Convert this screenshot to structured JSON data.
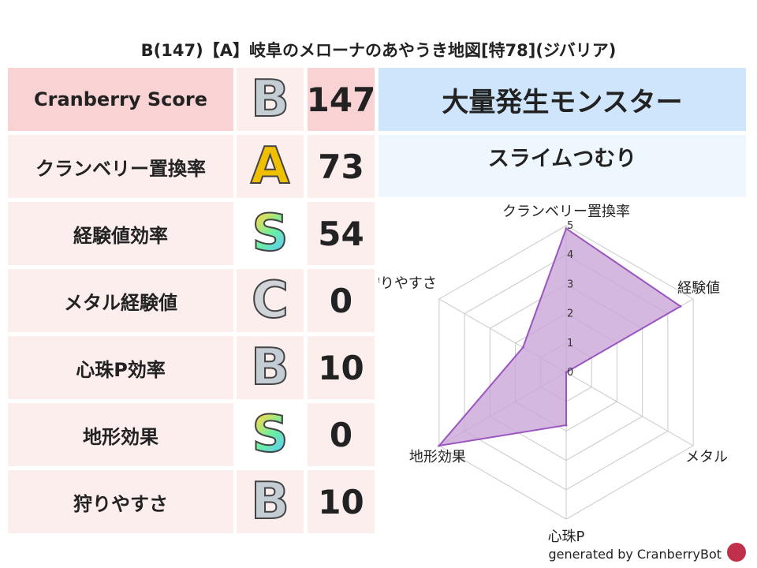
{
  "title": "B(147)【A】岐阜のメローナのあやうき地図[特78](ジバリア)",
  "rows": [
    {
      "label": "Cranberry Score",
      "grade": "B",
      "value": "147"
    },
    {
      "label": "クランベリー置換率",
      "grade": "A",
      "value": "73"
    },
    {
      "label": "経験値効率",
      "grade": "S",
      "value": "54"
    },
    {
      "label": "メタル経験値",
      "grade": "C",
      "value": "0"
    },
    {
      "label": "心珠P効率",
      "grade": "B",
      "value": "10"
    },
    {
      "label": "地形効果",
      "grade": "S",
      "value": "0"
    },
    {
      "label": "狩りやすさ",
      "grade": "B",
      "value": "10"
    }
  ],
  "monster": {
    "header": "大量発生モンスター",
    "name": "スライムつむり"
  },
  "footer": "generated by CranberryBot",
  "colors": {
    "fill": "#c9a6d8",
    "line": "#9a55bf",
    "grade_B": "#b8c0c8",
    "grade_A": "#e8b400",
    "grade_C": "#c8ccd0"
  },
  "chart_data": {
    "type": "radar",
    "categories": [
      "クランベリー置換率",
      "経験値",
      "メタル",
      "心珠P",
      "地形効果",
      "狩りやすさ"
    ],
    "values": [
      4.9,
      4.5,
      0,
      1.8,
      5,
      1.7
    ],
    "rlim": [
      0,
      5
    ],
    "ticks": [
      "0",
      "1",
      "2",
      "3",
      "4",
      "5"
    ]
  }
}
